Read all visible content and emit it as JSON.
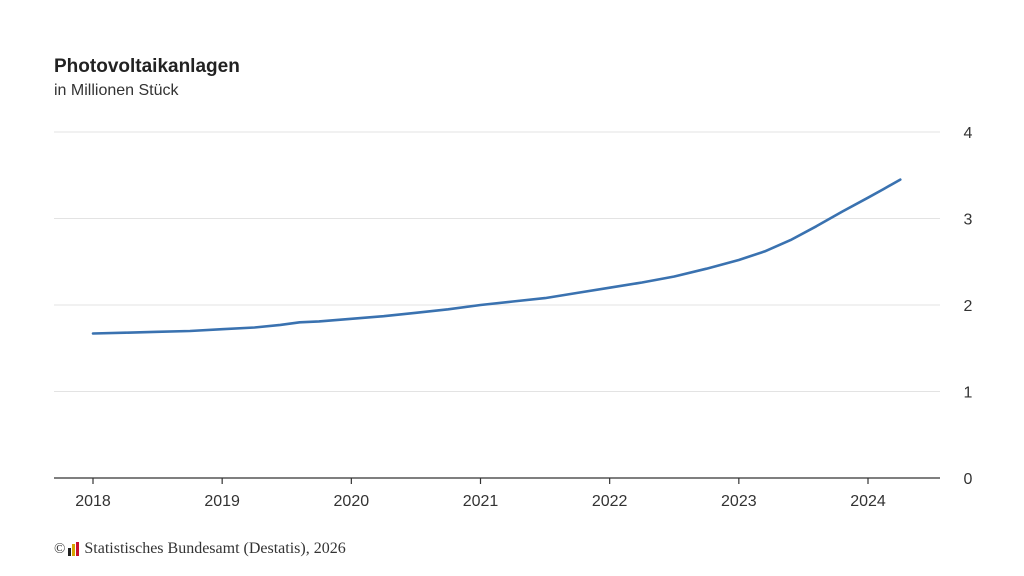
{
  "header": {
    "title": "Photovoltaikanlagen",
    "subtitle": "in Millionen Stück"
  },
  "footer": {
    "copyright_symbol": "©",
    "source": "Statistisches Bundesamt (Destatis), 2026",
    "logo_icon": "destatis-logo-icon",
    "logo_colors": [
      "#222222",
      "#d6a400",
      "#c8102e"
    ]
  },
  "colors": {
    "line": "#3a72b0",
    "grid": "#e3e3e3",
    "axis": "#333333"
  },
  "chart_data": {
    "type": "line",
    "title": "Photovoltaikanlagen",
    "subtitle": "in Millionen Stück",
    "xlabel": "",
    "ylabel": "",
    "xlim": [
      2018,
      2024.6
    ],
    "ylim": [
      0,
      4
    ],
    "x_ticks": [
      2018,
      2019,
      2020,
      2021,
      2022,
      2023,
      2024
    ],
    "x_tick_labels": [
      "2018",
      "2019",
      "2020",
      "2021",
      "2022",
      "2023",
      "2024"
    ],
    "y_ticks": [
      0,
      1,
      2,
      3,
      4
    ],
    "y_tick_labels": [
      "0",
      "1",
      "2",
      "3",
      "4"
    ],
    "y_axis_side": "right",
    "grid": true,
    "legend": "none",
    "series": [
      {
        "points": [
          [
            2018.0,
            1.67
          ],
          [
            2018.25,
            1.68
          ],
          [
            2018.5,
            1.69
          ],
          [
            2018.75,
            1.7
          ],
          [
            2019.0,
            1.72
          ],
          [
            2019.25,
            1.74
          ],
          [
            2019.45,
            1.77
          ],
          [
            2019.6,
            1.8
          ],
          [
            2019.75,
            1.81
          ],
          [
            2020.0,
            1.84
          ],
          [
            2020.25,
            1.87
          ],
          [
            2020.5,
            1.91
          ],
          [
            2020.75,
            1.95
          ],
          [
            2021.0,
            2.0
          ],
          [
            2021.25,
            2.04
          ],
          [
            2021.5,
            2.08
          ],
          [
            2021.75,
            2.14
          ],
          [
            2022.0,
            2.2
          ],
          [
            2022.25,
            2.26
          ],
          [
            2022.5,
            2.33
          ],
          [
            2022.75,
            2.42
          ],
          [
            2023.0,
            2.52
          ],
          [
            2023.2,
            2.62
          ],
          [
            2023.4,
            2.75
          ],
          [
            2023.6,
            2.91
          ],
          [
            2023.8,
            3.08
          ],
          [
            2024.0,
            3.24
          ],
          [
            2024.12,
            3.34
          ],
          [
            2024.25,
            3.45
          ]
        ]
      }
    ]
  }
}
